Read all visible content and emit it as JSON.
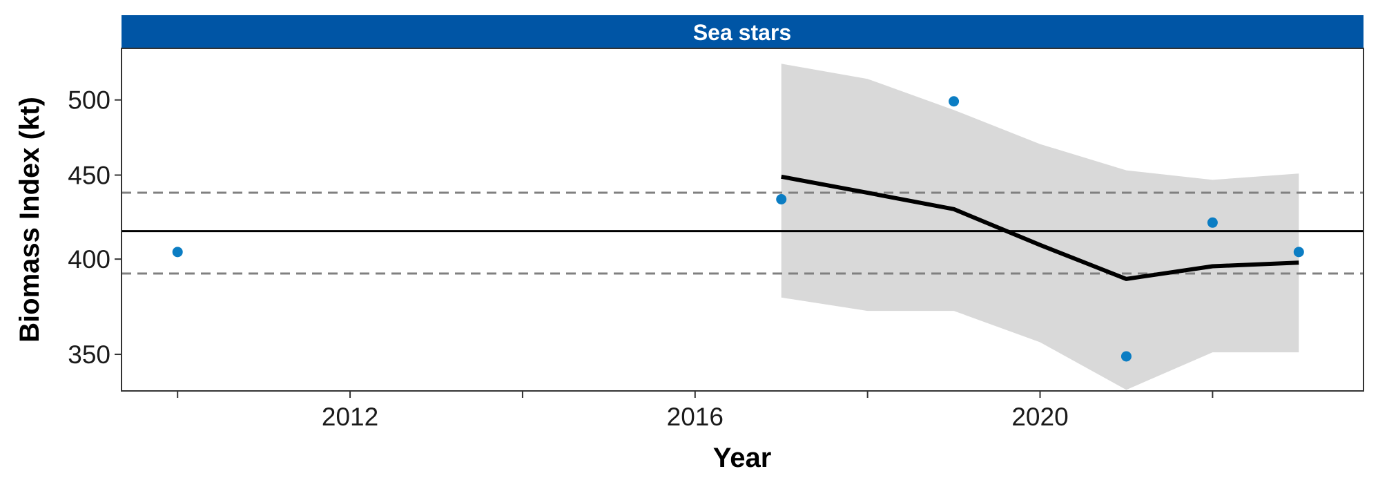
{
  "chart_data": {
    "type": "line",
    "panel_title": "Sea stars",
    "xlabel": "Year",
    "ylabel": "Biomass Index (kt)",
    "xlim": [
      2009.35,
      2023.75
    ],
    "ylim": [
      332.5,
      537.5
    ],
    "y_scale": "log",
    "xticks": [
      2012,
      2016,
      2020
    ],
    "xticks_minor": [
      2010,
      2014,
      2018,
      2022
    ],
    "yticks": [
      350,
      400,
      450,
      500
    ],
    "grid": false,
    "legend": "none",
    "points": {
      "x": [
        2010,
        2017,
        2019,
        2021,
        2022,
        2023
      ],
      "y": [
        404,
        435,
        499,
        349,
        421,
        404
      ]
    },
    "trend": {
      "x": [
        2017,
        2018,
        2019,
        2020,
        2021,
        2022,
        2023
      ],
      "y": [
        449,
        439,
        429,
        408,
        389,
        396,
        398
      ]
    },
    "ci_upper": [
      526,
      515,
      493,
      470,
      453,
      447,
      451
    ],
    "ci_lower": [
      379,
      372,
      372,
      356,
      333,
      351,
      351
    ],
    "reference_lines": {
      "mean": 416,
      "upper_sd": 439,
      "lower_sd": 392
    },
    "colors": {
      "strip_fill": "#0055a5",
      "point": "#0b7dc3",
      "ci_fill": "#d9d9d9",
      "trend": "#000000",
      "mean_line": "#000000",
      "sd_lines": "#808080"
    }
  }
}
